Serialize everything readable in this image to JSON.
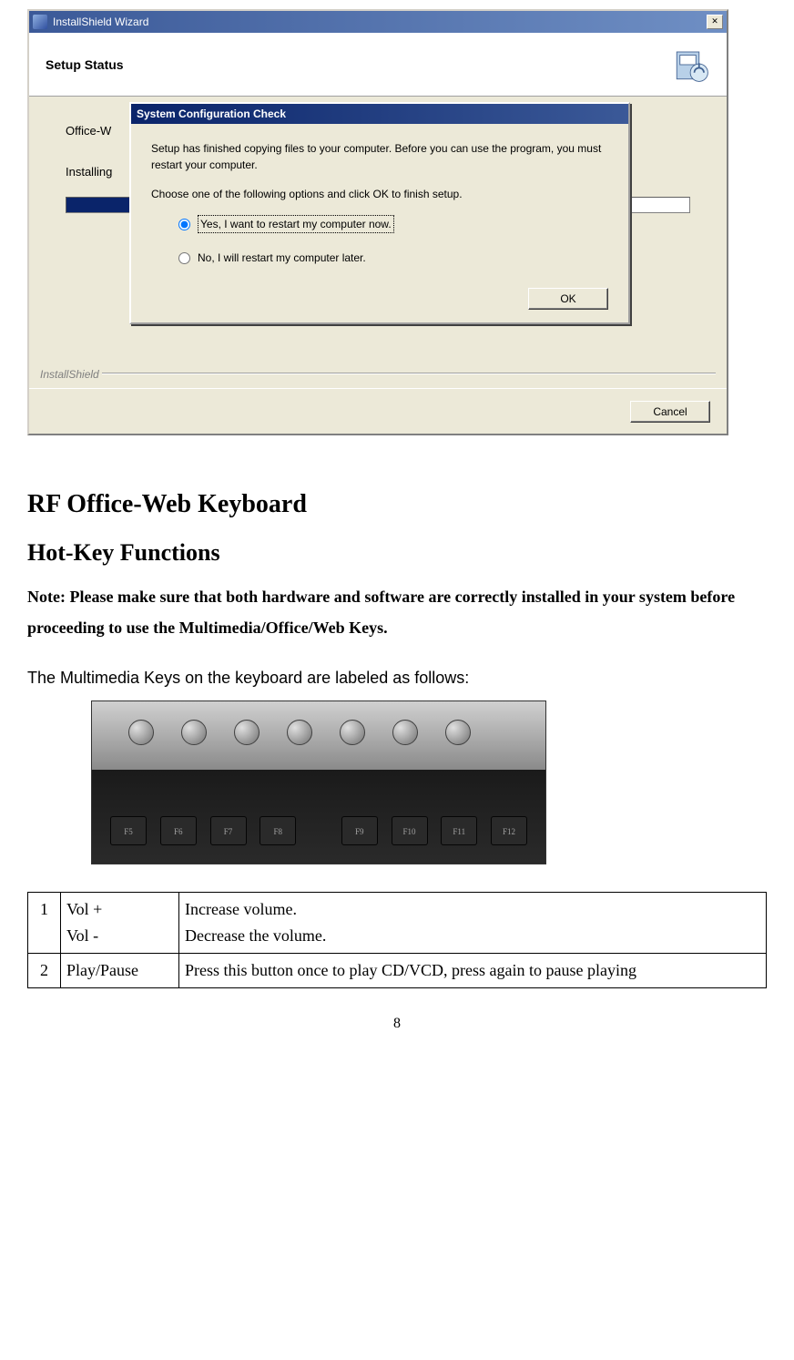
{
  "outer_window": {
    "title": "InstallShield Wizard",
    "close_symbol": "✕",
    "header_title": "Setup Status",
    "body_line1": "Office-W",
    "body_line2": "Installing",
    "installshield_label": "InstallShield",
    "cancel_label": "Cancel",
    "progress_percent": 90,
    "progress_color": "#0a246a",
    "header_bg": "#ffffff",
    "body_bg": "#ece9d8"
  },
  "inner_dialog": {
    "title": "System Configuration Check",
    "para1": "Setup has finished copying files to your computer.  Before you can use the program, you must restart your computer.",
    "para2": "Choose one of the following options and click OK to finish setup.",
    "option1": "Yes, I want to restart my computer now.",
    "option2": "No, I will restart my computer later.",
    "ok_label": "OK",
    "titlebar_gradient_start": "#0a246a",
    "titlebar_gradient_end": "#3b5998"
  },
  "doc": {
    "h1": "RF Office-Web Keyboard",
    "h2": "Hot-Key Functions",
    "note": "Note: Please make sure that both hardware and software are correctly installed in your system before proceeding to use the Multimedia/Office/Web Keys.",
    "body1": "The Multimedia Keys on the keyboard are labeled as follows:",
    "fkeys": [
      "F5",
      "F6",
      "F7",
      "F8",
      "",
      "F9",
      "F10",
      "F11",
      "F12"
    ],
    "page_number": "8"
  },
  "table": {
    "rows": [
      {
        "num": "1",
        "name": "Vol +\nVol -",
        "desc": "Increase volume.\nDecrease the volume."
      },
      {
        "num": "2",
        "name": "Play/Pause",
        "desc": "Press this button once to play CD/VCD, press again to pause playing"
      }
    ]
  }
}
